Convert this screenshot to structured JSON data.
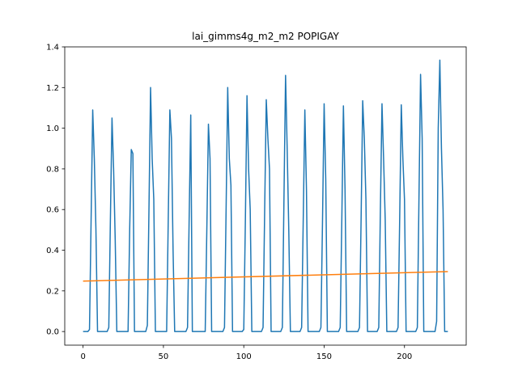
{
  "chart_data": {
    "type": "line",
    "title": "lai_gimms4g_m2_m2 POPIGAY",
    "xlabel": "",
    "ylabel": "",
    "xlim": [
      -11.4,
      238.4
    ],
    "ylim": [
      -0.067,
      1.4
    ],
    "x_ticks": [
      0,
      50,
      100,
      150,
      200
    ],
    "y_ticks": [
      0.0,
      0.2,
      0.4,
      0.6,
      0.8,
      1.0,
      1.2,
      1.4
    ],
    "y_tick_labels": [
      "0.0",
      "0.2",
      "0.4",
      "0.6",
      "0.8",
      "1.0",
      "1.2",
      "1.4"
    ],
    "grid": false,
    "series": [
      {
        "color": "#1f77b4",
        "points": [
          [
            0,
            0
          ],
          [
            1,
            0
          ],
          [
            2,
            0
          ],
          [
            3,
            0
          ],
          [
            4,
            0.01
          ],
          [
            5,
            0.55
          ],
          [
            6,
            1.09
          ],
          [
            7,
            0.85
          ],
          [
            8,
            0.5
          ],
          [
            9,
            0
          ],
          [
            10,
            0
          ],
          [
            11,
            0
          ],
          [
            12,
            0
          ],
          [
            13,
            0
          ],
          [
            14,
            0
          ],
          [
            15,
            0
          ],
          [
            16,
            0.02
          ],
          [
            17,
            0.55
          ],
          [
            18,
            1.05
          ],
          [
            19,
            0.8
          ],
          [
            20,
            0.45
          ],
          [
            21,
            0
          ],
          [
            22,
            0
          ],
          [
            23,
            0
          ],
          [
            24,
            0
          ],
          [
            25,
            0
          ],
          [
            26,
            0
          ],
          [
            27,
            0
          ],
          [
            28,
            0
          ],
          [
            29,
            0.5
          ],
          [
            30,
            0.895
          ],
          [
            31,
            0.875
          ],
          [
            32,
            0
          ],
          [
            33,
            0
          ],
          [
            34,
            0
          ],
          [
            35,
            0
          ],
          [
            36,
            0
          ],
          [
            37,
            0
          ],
          [
            38,
            0
          ],
          [
            39,
            0
          ],
          [
            40,
            0.03
          ],
          [
            41,
            0.6
          ],
          [
            42,
            1.2
          ],
          [
            43,
            0.85
          ],
          [
            44,
            0.65
          ],
          [
            45,
            0
          ],
          [
            46,
            0
          ],
          [
            47,
            0
          ],
          [
            48,
            0
          ],
          [
            49,
            0
          ],
          [
            50,
            0
          ],
          [
            51,
            0
          ],
          [
            52,
            0
          ],
          [
            53,
            0.55
          ],
          [
            54,
            1.09
          ],
          [
            55,
            0.95
          ],
          [
            56,
            0.4
          ],
          [
            57,
            0
          ],
          [
            58,
            0
          ],
          [
            59,
            0
          ],
          [
            60,
            0
          ],
          [
            61,
            0
          ],
          [
            62,
            0
          ],
          [
            63,
            0
          ],
          [
            64,
            0
          ],
          [
            65,
            0.02
          ],
          [
            66,
            0.55
          ],
          [
            67,
            1.065
          ],
          [
            68,
            0
          ],
          [
            69,
            0
          ],
          [
            70,
            0
          ],
          [
            71,
            0
          ],
          [
            72,
            0
          ],
          [
            73,
            0
          ],
          [
            74,
            0
          ],
          [
            75,
            0
          ],
          [
            76,
            0
          ],
          [
            77,
            0.5
          ],
          [
            78,
            1.02
          ],
          [
            79,
            0.85
          ],
          [
            80,
            0
          ],
          [
            81,
            0
          ],
          [
            82,
            0
          ],
          [
            83,
            0
          ],
          [
            84,
            0
          ],
          [
            85,
            0
          ],
          [
            86,
            0
          ],
          [
            87,
            0
          ],
          [
            88,
            0.02
          ],
          [
            89,
            0.6
          ],
          [
            90,
            1.2
          ],
          [
            91,
            0.85
          ],
          [
            92,
            0.72
          ],
          [
            93,
            0
          ],
          [
            94,
            0
          ],
          [
            95,
            0
          ],
          [
            96,
            0
          ],
          [
            97,
            0
          ],
          [
            98,
            0
          ],
          [
            99,
            0
          ],
          [
            100,
            0.01
          ],
          [
            101,
            0.55
          ],
          [
            102,
            1.16
          ],
          [
            103,
            0.8
          ],
          [
            104,
            0.6
          ],
          [
            105,
            0
          ],
          [
            106,
            0
          ],
          [
            107,
            0
          ],
          [
            108,
            0
          ],
          [
            109,
            0
          ],
          [
            110,
            0
          ],
          [
            111,
            0
          ],
          [
            112,
            0.02
          ],
          [
            113,
            0.6
          ],
          [
            114,
            1.14
          ],
          [
            115,
            0.95
          ],
          [
            116,
            0.8
          ],
          [
            117,
            0
          ],
          [
            118,
            0
          ],
          [
            119,
            0
          ],
          [
            120,
            0
          ],
          [
            121,
            0
          ],
          [
            122,
            0
          ],
          [
            123,
            0
          ],
          [
            124,
            0.02
          ],
          [
            125,
            0.65
          ],
          [
            126,
            1.26
          ],
          [
            127,
            0.9
          ],
          [
            128,
            0.5
          ],
          [
            129,
            0
          ],
          [
            130,
            0
          ],
          [
            131,
            0
          ],
          [
            132,
            0
          ],
          [
            133,
            0
          ],
          [
            134,
            0
          ],
          [
            135,
            0
          ],
          [
            136,
            0.02
          ],
          [
            137,
            0.55
          ],
          [
            138,
            1.09
          ],
          [
            139,
            0.7
          ],
          [
            140,
            0
          ],
          [
            141,
            0
          ],
          [
            142,
            0
          ],
          [
            143,
            0
          ],
          [
            144,
            0
          ],
          [
            145,
            0
          ],
          [
            146,
            0
          ],
          [
            147,
            0
          ],
          [
            148,
            0.02
          ],
          [
            149,
            0.55
          ],
          [
            150,
            1.12
          ],
          [
            151,
            0.75
          ],
          [
            152,
            0
          ],
          [
            153,
            0
          ],
          [
            154,
            0
          ],
          [
            155,
            0
          ],
          [
            156,
            0
          ],
          [
            157,
            0
          ],
          [
            158,
            0
          ],
          [
            159,
            0
          ],
          [
            160,
            0.02
          ],
          [
            161,
            0.55
          ],
          [
            162,
            1.11
          ],
          [
            163,
            0.7
          ],
          [
            164,
            0
          ],
          [
            165,
            0
          ],
          [
            166,
            0
          ],
          [
            167,
            0
          ],
          [
            168,
            0
          ],
          [
            169,
            0
          ],
          [
            170,
            0
          ],
          [
            171,
            0
          ],
          [
            172,
            0.02
          ],
          [
            173,
            0.55
          ],
          [
            174,
            1.135
          ],
          [
            175,
            0.95
          ],
          [
            176,
            0.65
          ],
          [
            177,
            0
          ],
          [
            178,
            0
          ],
          [
            179,
            0
          ],
          [
            180,
            0
          ],
          [
            181,
            0
          ],
          [
            182,
            0
          ],
          [
            183,
            0
          ],
          [
            184,
            0.02
          ],
          [
            185,
            0.6
          ],
          [
            186,
            1.12
          ],
          [
            187,
            0.85
          ],
          [
            188,
            0.55
          ],
          [
            189,
            0
          ],
          [
            190,
            0
          ],
          [
            191,
            0
          ],
          [
            192,
            0
          ],
          [
            193,
            0
          ],
          [
            194,
            0
          ],
          [
            195,
            0
          ],
          [
            196,
            0.02
          ],
          [
            197,
            0.55
          ],
          [
            198,
            1.115
          ],
          [
            199,
            0.85
          ],
          [
            200,
            0.65
          ],
          [
            201,
            0
          ],
          [
            202,
            0
          ],
          [
            203,
            0
          ],
          [
            204,
            0
          ],
          [
            205,
            0
          ],
          [
            206,
            0
          ],
          [
            207,
            0
          ],
          [
            208,
            0.02
          ],
          [
            209,
            0.65
          ],
          [
            210,
            1.265
          ],
          [
            211,
            0.95
          ],
          [
            212,
            0
          ],
          [
            213,
            0
          ],
          [
            214,
            0
          ],
          [
            215,
            0
          ],
          [
            216,
            0
          ],
          [
            217,
            0
          ],
          [
            218,
            0
          ],
          [
            219,
            0
          ],
          [
            220,
            0.05
          ],
          [
            221,
            1.0
          ],
          [
            222,
            1.335
          ],
          [
            223,
            0.9
          ],
          [
            224,
            0.6
          ],
          [
            225,
            0
          ],
          [
            226,
            0
          ],
          [
            227,
            0
          ]
        ]
      },
      {
        "color": "#ff7f0e",
        "points": [
          [
            0,
            0.248
          ],
          [
            227,
            0.295
          ]
        ]
      }
    ]
  }
}
